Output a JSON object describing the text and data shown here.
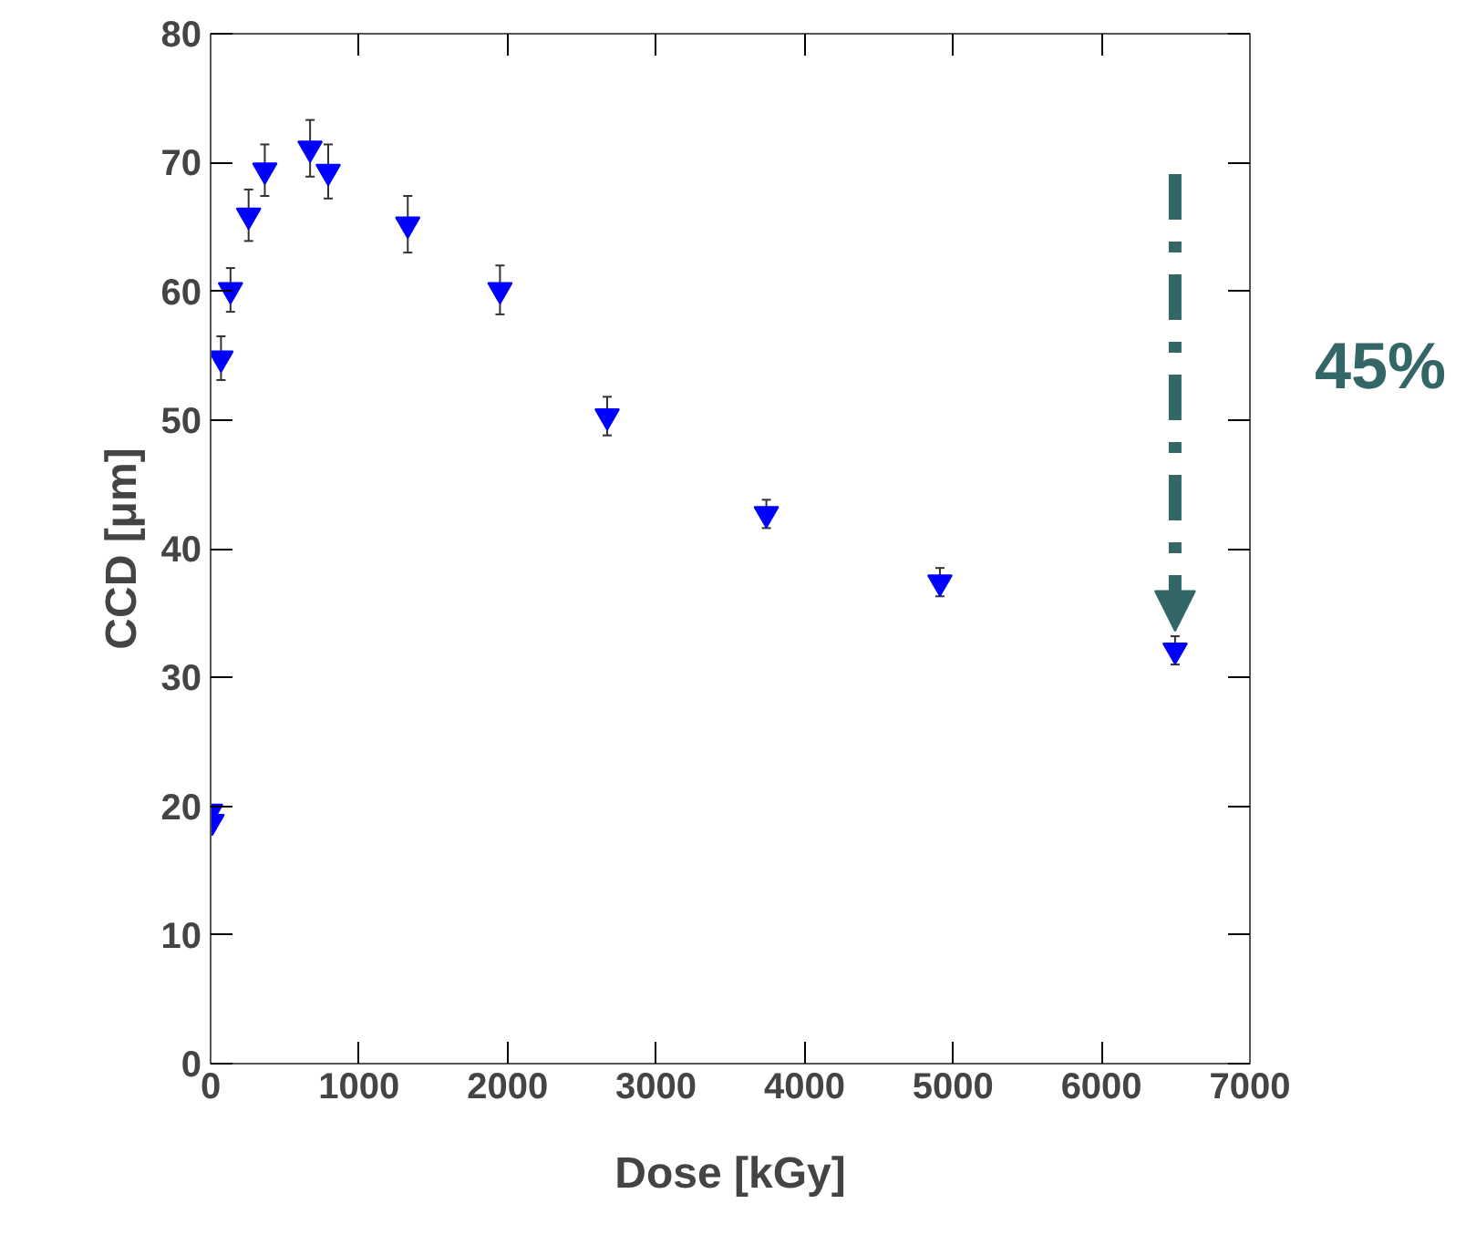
{
  "chart_data": {
    "type": "scatter",
    "xlabel": "Dose [kGy]",
    "ylabel": "CCD [μm]",
    "x": [
      0,
      10,
      70,
      134,
      256,
      365,
      670,
      792,
      1328,
      1949,
      2671,
      3743,
      4912,
      6496
    ],
    "series": [
      {
        "color": "#0000ff",
        "values": [
          19.6,
          18.8,
          54.8,
          60.1,
          65.9,
          69.4,
          71.1,
          69.3,
          65.2,
          60.1,
          50.3,
          42.7,
          37.4,
          32.1
        ],
        "errors": [
          0.5,
          0.5,
          1.7,
          1.7,
          2.0,
          2.0,
          2.2,
          2.1,
          2.2,
          1.9,
          1.5,
          1.1,
          1.1,
          1.1
        ]
      }
    ],
    "marker": "triangle",
    "grid": false,
    "xlim": [
      0,
      7000
    ],
    "ylim": [
      0,
      80
    ],
    "xticks": [
      0,
      1000,
      2000,
      3000,
      4000,
      5000,
      6000,
      7000
    ],
    "yticks": [
      0,
      10,
      20,
      30,
      40,
      50,
      60,
      70,
      80
    ],
    "annotations": [
      "45%"
    ]
  }
}
